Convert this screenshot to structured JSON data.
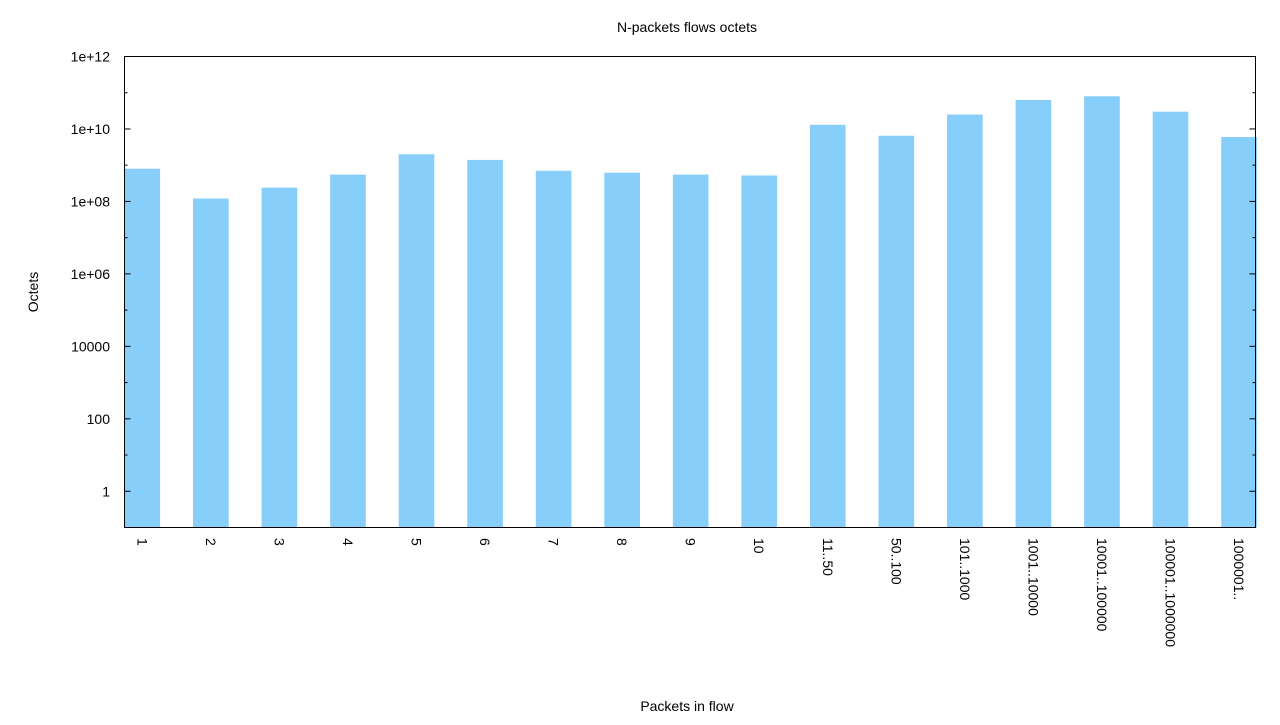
{
  "chart_data": {
    "type": "bar",
    "title": "N-packets flows octets",
    "xlabel": "Packets in flow",
    "ylabel": "Octets",
    "scale": "log",
    "grid": false,
    "legend": "none",
    "bar_color": "#87cefa",
    "ylim": [
      0.1,
      1000000000000
    ],
    "yticks": [
      {
        "value": 1,
        "label": "1"
      },
      {
        "value": 100,
        "label": "100"
      },
      {
        "value": 10000,
        "label": "10000"
      },
      {
        "value": 1000000,
        "label": "1e+06"
      },
      {
        "value": 100000000,
        "label": "1e+08"
      },
      {
        "value": 10000000000,
        "label": "1e+10"
      },
      {
        "value": 1000000000000,
        "label": "1e+12"
      }
    ],
    "categories": [
      "1",
      "2",
      "3",
      "4",
      "5",
      "6",
      "7",
      "8",
      "9",
      "10",
      "11..50",
      "50..100",
      "101..1000",
      "1001..10000",
      "10001..100000",
      "100001..1000000",
      "1000001.."
    ],
    "values": [
      800000000,
      120000000,
      240000000,
      550000000,
      2000000000,
      1400000000,
      700000000,
      620000000,
      550000000,
      520000000,
      13000000000,
      6500000000,
      25000000000,
      63000000000,
      80000000000,
      30000000000,
      6000000000
    ]
  }
}
